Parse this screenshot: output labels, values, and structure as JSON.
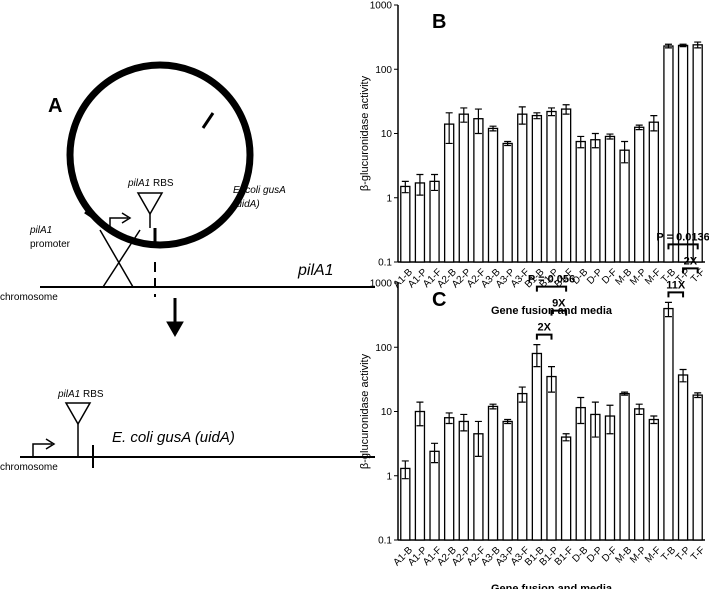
{
  "diagram": {
    "panel_label": "A",
    "rbs_gene": "pilA1",
    "rbs": "RBS",
    "reporter": "E. coli gusA",
    "reporter_alt": "(uidA)",
    "promoter_gene": "pilA1",
    "promoter": "promoter",
    "locus": "pilA1",
    "chromosome": "chromosome",
    "rbs_gene_2": "pilA1",
    "rbs_2": "RBS",
    "reporter_2": "E. coli gusA (uidA)",
    "chromosome_2": "chromosome"
  },
  "chart_data": [
    {
      "type": "bar",
      "panel_label": "B",
      "ylabel": "β-glucuronidase activity",
      "xlabel": "Gene fusion and media",
      "categories": [
        "A1-B",
        "A1-P",
        "A1-F",
        "A2-B",
        "A2-P",
        "A2-F",
        "A3-B",
        "A3-P",
        "A3-F",
        "B1-B",
        "B1-P",
        "B1-F",
        "D-B",
        "D-P",
        "D-F",
        "M-B",
        "M-P",
        "M-F",
        "T-B",
        "T-P",
        "T-F"
      ],
      "values": [
        1.5,
        1.7,
        1.8,
        14,
        20,
        17,
        12,
        7,
        20,
        19,
        22,
        24,
        7.5,
        8,
        9,
        5.5,
        12.5,
        15,
        230,
        235,
        240
      ],
      "errors": [
        0.3,
        0.6,
        0.5,
        7,
        5,
        7,
        1,
        0.5,
        6,
        2,
        3,
        4,
        1.5,
        2,
        0.8,
        2,
        1,
        4,
        15,
        10,
        25
      ],
      "color": "#ffffff",
      "log": true,
      "ylim": [
        0.1,
        1000
      ],
      "yticks": [
        0.1,
        1,
        10,
        100,
        1000
      ]
    },
    {
      "type": "bar",
      "panel_label": "C",
      "ylabel": "β-glucuronidase activity",
      "xlabel": "Gene fusion and media",
      "categories": [
        "A1-B",
        "A1-P",
        "A1-F",
        "A2-B",
        "A2-P",
        "A2-F",
        "A3-B",
        "A3-P",
        "A3-F",
        "B1-B",
        "B1-P",
        "B1-F",
        "D-B",
        "D-P",
        "D-F",
        "M-B",
        "M-P",
        "M-F",
        "T-B",
        "T-P",
        "T-F"
      ],
      "values": [
        1.3,
        10,
        2.4,
        8,
        7,
        4.5,
        12,
        7,
        19,
        80,
        35,
        4,
        11.5,
        9,
        8.5,
        19,
        11,
        7.5,
        400,
        37,
        18
      ],
      "errors": [
        0.4,
        4,
        0.8,
        1.5,
        2,
        2.5,
        1,
        0.5,
        5,
        30,
        15,
        0.5,
        5,
        5,
        4,
        1,
        2,
        1,
        100,
        8,
        1.5
      ],
      "color": "#ffffff",
      "log": true,
      "ylim": [
        0.1,
        1000
      ],
      "yticks": [
        0.1,
        1,
        10,
        100,
        1000
      ],
      "annotations": [
        {
          "text": "2X",
          "between": [
            "B1-B",
            "B1-P"
          ]
        },
        {
          "text": "9X",
          "between": [
            "B1-P",
            "B1-F"
          ]
        },
        {
          "text": "P = 0.056",
          "between": [
            "B1-B",
            "B1-F"
          ]
        },
        {
          "text": "11X",
          "between": [
            "T-B",
            "T-P"
          ]
        },
        {
          "text": "2X",
          "between": [
            "T-P",
            "T-F"
          ]
        },
        {
          "text": "P = 0.0136",
          "between": [
            "T-B",
            "T-F"
          ]
        }
      ]
    }
  ]
}
